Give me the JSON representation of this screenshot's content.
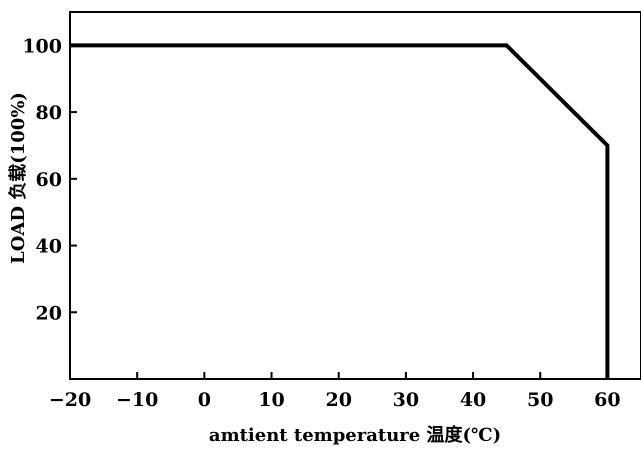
{
  "chart_data": {
    "type": "line",
    "title": "",
    "xlabel": "amtient temperature 温度(℃)",
    "ylabel": "LOAD 负载(100%)",
    "xlim": [
      -20,
      65
    ],
    "ylim": [
      0,
      110
    ],
    "x_ticks": [
      -20,
      -10,
      0,
      10,
      20,
      30,
      40,
      50,
      60
    ],
    "x_tick_labels": [
      "−20",
      "−10",
      "0",
      "10",
      "20",
      "30",
      "40",
      "50",
      "60"
    ],
    "y_ticks": [
      20,
      40,
      60,
      80,
      100
    ],
    "y_tick_labels": [
      "20",
      "40",
      "60",
      "80",
      "100"
    ],
    "grid": false,
    "line_color": "#000000",
    "series": [
      {
        "x": [
          -20,
          45,
          60,
          60
        ],
        "y": [
          100,
          100,
          70,
          0
        ]
      }
    ]
  }
}
